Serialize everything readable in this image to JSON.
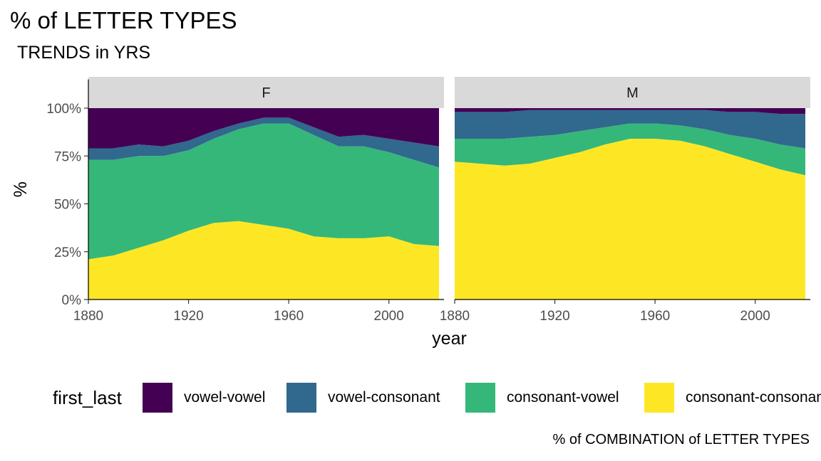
{
  "chart_data": {
    "type": "area",
    "title": "% of LETTER TYPES",
    "subtitle": "TRENDS in YRS",
    "xlabel": "year",
    "ylabel": "%",
    "caption": "% of COMBINATION of LETTER TYPES",
    "xlim": [
      1880,
      2022
    ],
    "ylim": [
      0,
      1.15
    ],
    "xticks": [
      1880,
      1920,
      1960,
      2000
    ],
    "xtick_labels": [
      "1880",
      "1920",
      "1960",
      "2000"
    ],
    "yticks": [
      0,
      0.25,
      0.5,
      0.75,
      1.0
    ],
    "ytick_labels": [
      "0%",
      "25%",
      "50%",
      "75%",
      "100%"
    ],
    "grid": false,
    "legend": {
      "title": "first_last",
      "position": "bottom",
      "entries": [
        "vowel-vowel",
        "vowel-consonant",
        "consonant-vowel",
        "consonant-consonant"
      ]
    },
    "series_colors": {
      "vowel-vowel": "#440154",
      "vowel-consonant": "#31688e",
      "consonant-vowel": "#35b779",
      "consonant-consonant": "#fde725"
    },
    "facets": [
      {
        "label": "F",
        "x": [
          1880,
          1890,
          1900,
          1910,
          1920,
          1930,
          1940,
          1950,
          1960,
          1970,
          1980,
          1990,
          2000,
          2010,
          2020
        ],
        "series": [
          {
            "name": "consonant-consonant",
            "values": [
              0.21,
              0.23,
              0.27,
              0.31,
              0.36,
              0.4,
              0.41,
              0.39,
              0.37,
              0.33,
              0.32,
              0.32,
              0.33,
              0.29,
              0.28
            ]
          },
          {
            "name": "consonant-vowel",
            "values": [
              0.52,
              0.5,
              0.48,
              0.44,
              0.42,
              0.44,
              0.48,
              0.53,
              0.55,
              0.53,
              0.48,
              0.48,
              0.44,
              0.44,
              0.41
            ]
          },
          {
            "name": "vowel-consonant",
            "values": [
              0.06,
              0.06,
              0.06,
              0.05,
              0.05,
              0.04,
              0.03,
              0.03,
              0.03,
              0.04,
              0.05,
              0.06,
              0.07,
              0.09,
              0.11
            ]
          },
          {
            "name": "vowel-vowel",
            "values": [
              0.21,
              0.21,
              0.19,
              0.2,
              0.17,
              0.12,
              0.08,
              0.05,
              0.05,
              0.1,
              0.15,
              0.14,
              0.16,
              0.18,
              0.2
            ]
          }
        ]
      },
      {
        "label": "M",
        "x": [
          1880,
          1890,
          1900,
          1910,
          1920,
          1930,
          1940,
          1950,
          1960,
          1970,
          1980,
          1990,
          2000,
          2010,
          2020
        ],
        "series": [
          {
            "name": "consonant-consonant",
            "values": [
              0.72,
              0.71,
              0.7,
              0.71,
              0.74,
              0.77,
              0.81,
              0.84,
              0.84,
              0.83,
              0.8,
              0.76,
              0.72,
              0.68,
              0.65
            ]
          },
          {
            "name": "consonant-vowel",
            "values": [
              0.12,
              0.13,
              0.14,
              0.14,
              0.12,
              0.11,
              0.09,
              0.08,
              0.08,
              0.08,
              0.09,
              0.1,
              0.12,
              0.13,
              0.14
            ]
          },
          {
            "name": "vowel-consonant",
            "values": [
              0.14,
              0.14,
              0.14,
              0.14,
              0.13,
              0.11,
              0.09,
              0.07,
              0.07,
              0.08,
              0.1,
              0.12,
              0.14,
              0.16,
              0.18
            ]
          },
          {
            "name": "vowel-vowel",
            "values": [
              0.02,
              0.02,
              0.02,
              0.01,
              0.01,
              0.01,
              0.01,
              0.01,
              0.01,
              0.01,
              0.01,
              0.02,
              0.02,
              0.03,
              0.03
            ]
          }
        ]
      }
    ]
  }
}
